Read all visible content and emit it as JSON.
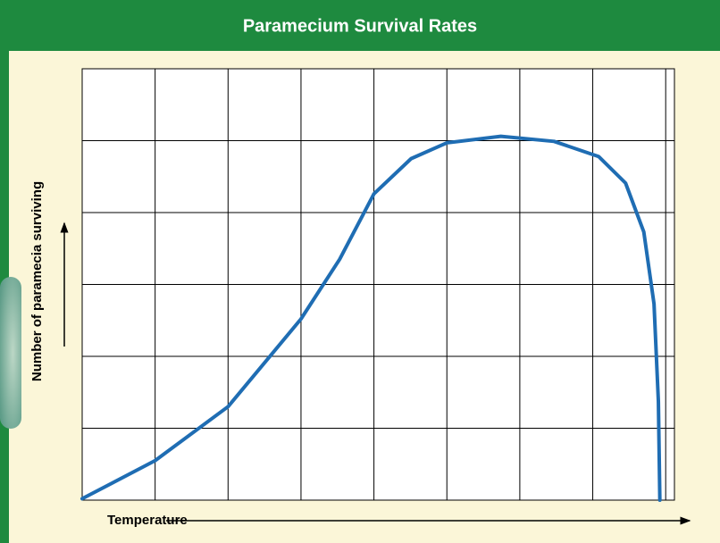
{
  "chart_data": {
    "type": "line",
    "title": "Paramecium Survival Rates",
    "x_label": "Temperature",
    "y_label": "Number of paramecia surviving",
    "x": [
      0,
      1,
      2,
      3,
      3.53,
      4,
      4.51,
      5,
      5.74,
      6.47,
      7.08,
      7.45,
      7.7,
      7.84,
      7.9,
      7.92
    ],
    "series": [
      {
        "color": "#1f6db3",
        "values": [
          0.02,
          0.55,
          1.3,
          2.52,
          3.35,
          4.26,
          4.75,
          4.97,
          5.06,
          4.99,
          4.78,
          4.41,
          3.73,
          2.73,
          1.37,
          0
        ]
      }
    ],
    "xlim": [
      0,
      8.12
    ],
    "ylim": [
      0,
      6
    ],
    "xticks": [
      0,
      1,
      2,
      3,
      4,
      5,
      6,
      7,
      8
    ],
    "yticks": [
      0,
      1,
      2,
      3,
      4,
      5,
      6
    ],
    "grid": true
  }
}
